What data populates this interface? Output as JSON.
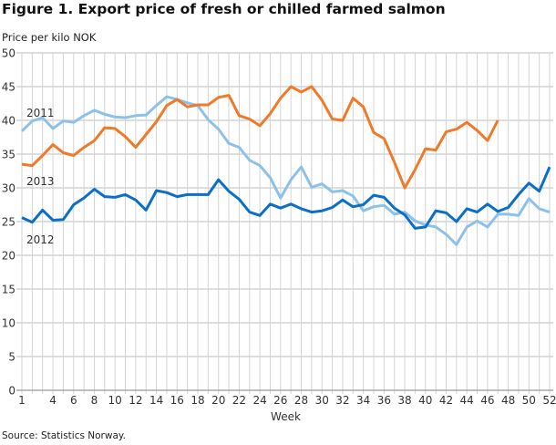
{
  "chart_data": {
    "type": "line",
    "title": "Figure 1. Export price of fresh or chilled farmed salmon",
    "ylabel": "Price per kilo NOK",
    "xlabel": "Week",
    "source": "Source: Statistics Norway.",
    "ylim": [
      0,
      50
    ],
    "yticks": [
      0,
      5,
      10,
      15,
      20,
      25,
      30,
      35,
      40,
      45,
      50
    ],
    "xlim": [
      1,
      52
    ],
    "xticks": [
      1,
      4,
      6,
      8,
      10,
      12,
      14,
      16,
      18,
      20,
      22,
      24,
      26,
      28,
      30,
      32,
      34,
      36,
      38,
      40,
      42,
      44,
      46,
      48,
      50,
      52
    ],
    "grid": true,
    "series": [
      {
        "name": "2011",
        "color": "#8dc1ea",
        "label_week": 1,
        "label_value": 41.2,
        "values": [
          38.4,
          39.9,
          40.4,
          38.8,
          39.9,
          39.7,
          40.7,
          41.5,
          40.9,
          40.5,
          40.4,
          40.7,
          40.8,
          42.2,
          43.5,
          43.1,
          42.6,
          42.2,
          40.1,
          38.7,
          36.6,
          36.0,
          34.1,
          33.3,
          31.5,
          28.5,
          31.2,
          33.1,
          30.1,
          30.6,
          29.4,
          29.6,
          28.8,
          26.6,
          27.2,
          27.4,
          26.1,
          26.4,
          25.1,
          24.5,
          24.2,
          23.1,
          21.6,
          24.2,
          25.1,
          24.2,
          26.1,
          26.1,
          25.9,
          28.4,
          26.9,
          26.4
        ]
      },
      {
        "name": "2012",
        "color": "#0b6fc6",
        "label_week": 1,
        "label_value": 22.4,
        "values": [
          25.6,
          24.9,
          26.7,
          25.2,
          25.3,
          27.5,
          28.5,
          29.8,
          28.7,
          28.6,
          29.0,
          28.2,
          26.7,
          29.6,
          29.3,
          28.7,
          29.0,
          29.0,
          29.0,
          31.2,
          29.5,
          28.3,
          26.4,
          25.9,
          27.6,
          27.0,
          27.6,
          26.9,
          26.4,
          26.6,
          27.1,
          28.2,
          27.2,
          27.5,
          28.9,
          28.6,
          27.0,
          26.0,
          24.0,
          24.2,
          26.6,
          26.3,
          25.0,
          26.9,
          26.4,
          27.6,
          26.5,
          27.1,
          29.0,
          30.7,
          29.5,
          33.1
        ]
      },
      {
        "name": "2013",
        "color": "#ee7a2a",
        "label_week": 1,
        "label_value": 31.1,
        "values": [
          33.5,
          33.3,
          34.8,
          36.4,
          35.2,
          34.8,
          36.0,
          37.0,
          38.9,
          38.8,
          37.6,
          36.0,
          37.9,
          39.8,
          42.2,
          43.1,
          42.0,
          42.3,
          42.3,
          43.4,
          43.7,
          40.7,
          40.2,
          39.2,
          41.0,
          43.3,
          45.0,
          44.2,
          45.0,
          43.0,
          40.2,
          40.0,
          43.3,
          42.0,
          38.2,
          37.3,
          33.8,
          30.0,
          32.7,
          35.8,
          35.6,
          38.3,
          38.7,
          39.7,
          38.5,
          37.0,
          40.0
        ]
      }
    ]
  }
}
